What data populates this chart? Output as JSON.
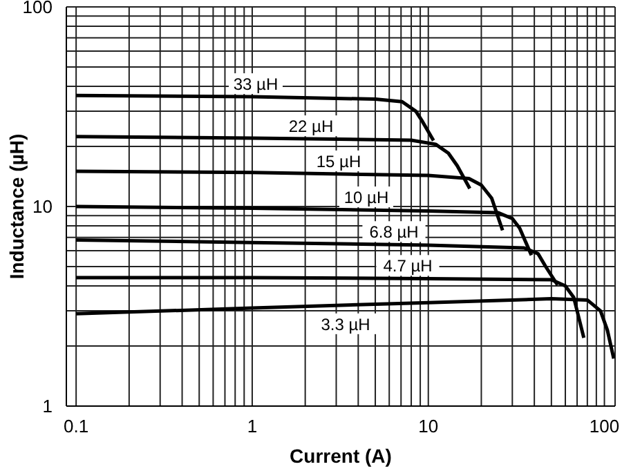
{
  "chart_data": {
    "type": "line",
    "xlabel": "Current (A)",
    "ylabel": "Inductance (µH)",
    "log": "xy",
    "grid": true,
    "marker": "none",
    "line_style": "solid",
    "legend": false,
    "xlim": [
      0.088,
      115
    ],
    "ylim": [
      1,
      100
    ],
    "xticks": [
      0.1,
      {
        "value": 0.2,
        "label": null
      },
      {
        "value": 0.3,
        "label": null
      },
      {
        "value": 0.4,
        "label": null
      },
      {
        "value": 0.5,
        "label": null
      },
      {
        "value": 0.6,
        "label": null
      },
      {
        "value": 0.7,
        "label": null
      },
      {
        "value": 0.8,
        "label": null
      },
      {
        "value": 0.9,
        "label": null
      },
      1,
      {
        "value": 2,
        "label": null
      },
      {
        "value": 3,
        "label": null
      },
      {
        "value": 4,
        "label": null
      },
      {
        "value": 5,
        "label": null
      },
      {
        "value": 6,
        "label": null
      },
      {
        "value": 7,
        "label": null
      },
      {
        "value": 8,
        "label": null
      },
      {
        "value": 9,
        "label": null
      },
      10,
      {
        "value": 20,
        "label": null
      },
      {
        "value": 30,
        "label": null
      },
      {
        "value": 40,
        "label": null
      },
      {
        "value": 50,
        "label": null
      },
      {
        "value": 60,
        "label": null
      },
      {
        "value": 70,
        "label": null
      },
      {
        "value": 80,
        "label": null
      },
      {
        "value": 90,
        "label": null
      },
      100
    ],
    "yticks": [
      1,
      {
        "value": 2,
        "label": null
      },
      {
        "value": 3,
        "label": null
      },
      {
        "value": 4,
        "label": null
      },
      {
        "value": 5,
        "label": null
      },
      {
        "value": 6,
        "label": null
      },
      {
        "value": 7,
        "label": null
      },
      {
        "value": 8,
        "label": null
      },
      {
        "value": 9,
        "label": null
      },
      10,
      {
        "value": 20,
        "label": null
      },
      {
        "value": 30,
        "label": null
      },
      {
        "value": 40,
        "label": null
      },
      {
        "value": 50,
        "label": null
      },
      {
        "value": 60,
        "label": null
      },
      {
        "value": 70,
        "label": null
      },
      {
        "value": 80,
        "label": null
      },
      {
        "value": 90,
        "label": null
      },
      100
    ],
    "series": [
      {
        "name": "33 µH",
        "color": "#000000",
        "x": [
          0.1,
          1,
          5,
          7.1,
          8.5,
          9.3,
          10.7
        ],
        "values": [
          36,
          35.5,
          34.5,
          33.5,
          30,
          26.5,
          21.4
        ]
      },
      {
        "name": "22 µH",
        "color": "#000000",
        "x": [
          0.1,
          1,
          8,
          11,
          13,
          14.6,
          17.2
        ],
        "values": [
          22.4,
          22,
          21.5,
          20.5,
          18.5,
          16,
          12.3
        ]
      },
      {
        "name": "15 µH",
        "color": "#000000",
        "x": [
          0.1,
          1,
          10,
          17,
          20,
          22.9,
          26.4
        ],
        "values": [
          15,
          14.8,
          14.3,
          13.8,
          12.8,
          11,
          7.6
        ]
      },
      {
        "name": "10 µH",
        "color": "#000000",
        "x": [
          0.1,
          1,
          10,
          25,
          30,
          33,
          38.5
        ],
        "values": [
          10,
          9.8,
          9.5,
          9.3,
          8.7,
          7.8,
          5.7
        ]
      },
      {
        "name": "6.8 µH",
        "color": "#000000",
        "x": [
          0.1,
          1,
          10,
          35,
          42,
          46.4,
          54.2
        ],
        "values": [
          6.8,
          6.6,
          6.4,
          6.2,
          5.8,
          5,
          4.04
        ]
      },
      {
        "name": "4.7 µH",
        "color": "#000000",
        "x": [
          0.1,
          1,
          10,
          50,
          60,
          67,
          76.4
        ],
        "values": [
          4.4,
          4.4,
          4.35,
          4.3,
          4,
          3.5,
          2.2
        ]
      },
      {
        "name": "3.3 µH",
        "color": "#000000",
        "x": [
          0.1,
          1,
          10,
          50,
          80,
          95,
          104,
          113
        ],
        "values": [
          2.9,
          3.1,
          3.3,
          3.45,
          3.4,
          3,
          2.4,
          1.73
        ]
      }
    ]
  }
}
